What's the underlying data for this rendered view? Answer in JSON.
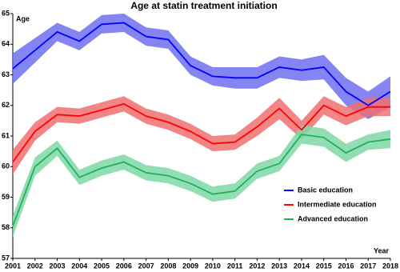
{
  "chart_data": {
    "type": "line",
    "title": "Age at statin treatment initiation",
    "y_label": "Age",
    "x_label": "Year",
    "x": [
      2001,
      2002,
      2003,
      2004,
      2005,
      2006,
      2007,
      2008,
      2009,
      2010,
      2011,
      2012,
      2013,
      2014,
      2015,
      2016,
      2017,
      2018
    ],
    "xlim": [
      2001,
      2018
    ],
    "xticks": [
      2001,
      2002,
      2003,
      2004,
      2005,
      2006,
      2007,
      2008,
      2009,
      2010,
      2011,
      2012,
      2013,
      2014,
      2015,
      2016,
      2017,
      2018
    ],
    "ylim": [
      57,
      65
    ],
    "yticks": [
      57,
      58,
      59,
      60,
      61,
      62,
      63,
      64,
      65
    ],
    "legend": "lower right",
    "series": [
      {
        "name": "Basic education",
        "color": "#0000ff",
        "band_color": "#6f6ff0",
        "values": [
          63.2,
          63.8,
          64.4,
          64.1,
          64.65,
          64.7,
          64.25,
          64.15,
          63.3,
          62.95,
          62.9,
          62.9,
          63.25,
          63.15,
          63.25,
          62.45,
          62.0,
          62.45
        ],
        "lower": [
          62.7,
          63.4,
          64.1,
          63.8,
          64.35,
          64.4,
          63.95,
          63.85,
          63.0,
          62.65,
          62.55,
          62.55,
          62.9,
          62.8,
          62.85,
          62.0,
          61.55,
          61.95
        ],
        "upper": [
          63.7,
          64.2,
          64.7,
          64.4,
          64.95,
          65.0,
          64.55,
          64.45,
          63.6,
          63.25,
          63.25,
          63.25,
          63.6,
          63.5,
          63.65,
          62.9,
          62.45,
          62.95
        ]
      },
      {
        "name": "Intermediate education",
        "color": "#ff0000",
        "band_color": "#f07070",
        "values": [
          60.15,
          61.15,
          61.7,
          61.65,
          61.85,
          62.05,
          61.65,
          61.45,
          61.15,
          60.75,
          60.8,
          61.3,
          61.9,
          61.2,
          62.0,
          61.65,
          61.95,
          61.95
        ],
        "lower": [
          59.75,
          60.85,
          61.45,
          61.4,
          61.6,
          61.8,
          61.4,
          61.2,
          60.9,
          60.5,
          60.55,
          61.0,
          61.55,
          60.9,
          61.7,
          61.35,
          61.65,
          61.65
        ],
        "upper": [
          60.55,
          61.45,
          61.95,
          61.9,
          62.1,
          62.3,
          61.9,
          61.7,
          61.4,
          61.0,
          61.05,
          61.6,
          62.25,
          61.5,
          62.3,
          61.95,
          62.25,
          62.25
        ]
      },
      {
        "name": "Advanced education",
        "color": "#22b060",
        "band_color": "#7ed8a4",
        "values": [
          58.05,
          60.0,
          60.6,
          59.65,
          59.95,
          60.15,
          59.8,
          59.7,
          59.45,
          59.1,
          59.2,
          59.85,
          60.1,
          61.05,
          60.95,
          60.45,
          60.8,
          60.9
        ],
        "lower": [
          57.7,
          59.7,
          60.35,
          59.4,
          59.7,
          59.9,
          59.55,
          59.45,
          59.2,
          58.85,
          58.95,
          59.6,
          59.85,
          60.75,
          60.65,
          60.15,
          60.55,
          60.6
        ],
        "upper": [
          58.4,
          60.3,
          60.85,
          59.9,
          60.2,
          60.4,
          60.05,
          59.95,
          59.7,
          59.35,
          59.45,
          60.1,
          60.35,
          61.35,
          61.25,
          60.75,
          61.05,
          61.2
        ]
      }
    ]
  }
}
